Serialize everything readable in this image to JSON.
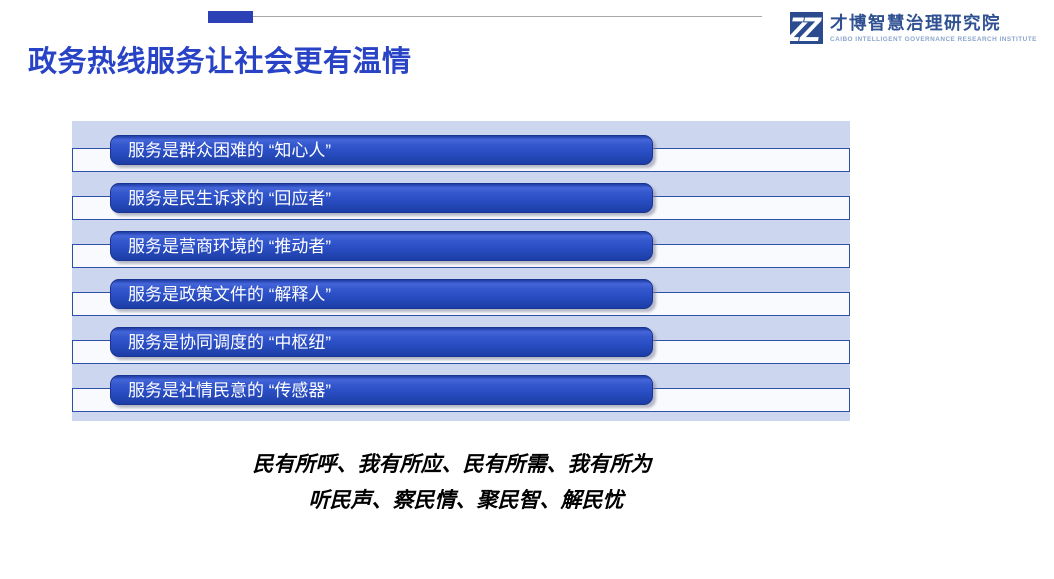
{
  "header": {
    "title": "政务热线服务让社会更有温情",
    "logo": {
      "name": "才博智慧治理研究院",
      "tagline": "CAIBO INTELLIGENT GOVERNANCE RESEARCH INSTITUTE",
      "mark": "double-z-monogram-icon"
    }
  },
  "service_bars": [
    {
      "label": "服务是群众困难的 “知心人”"
    },
    {
      "label": "服务是民生诉求的 “回应者”"
    },
    {
      "label": "服务是营商环境的 “推动者”"
    },
    {
      "label": "服务是政策文件的 “解释人”"
    },
    {
      "label": "服务是协同调度的 “中枢纽”"
    },
    {
      "label": "服务是社情民意的 “传感器”"
    }
  ],
  "slogan": {
    "line1": "民有所呼、我有所应、民有所需、我有所为",
    "line2": "听民声、察民情、聚民智、解民忧"
  },
  "colors": {
    "title_blue": "#2843c5",
    "accent_rect": "#2c41b5",
    "bar_blue": "#2b50c6",
    "panel_lavender": "#cdd6ef",
    "strip_border": "#2d50a6",
    "logo_navy": "#2f5192",
    "slogan_black": "#000000"
  }
}
